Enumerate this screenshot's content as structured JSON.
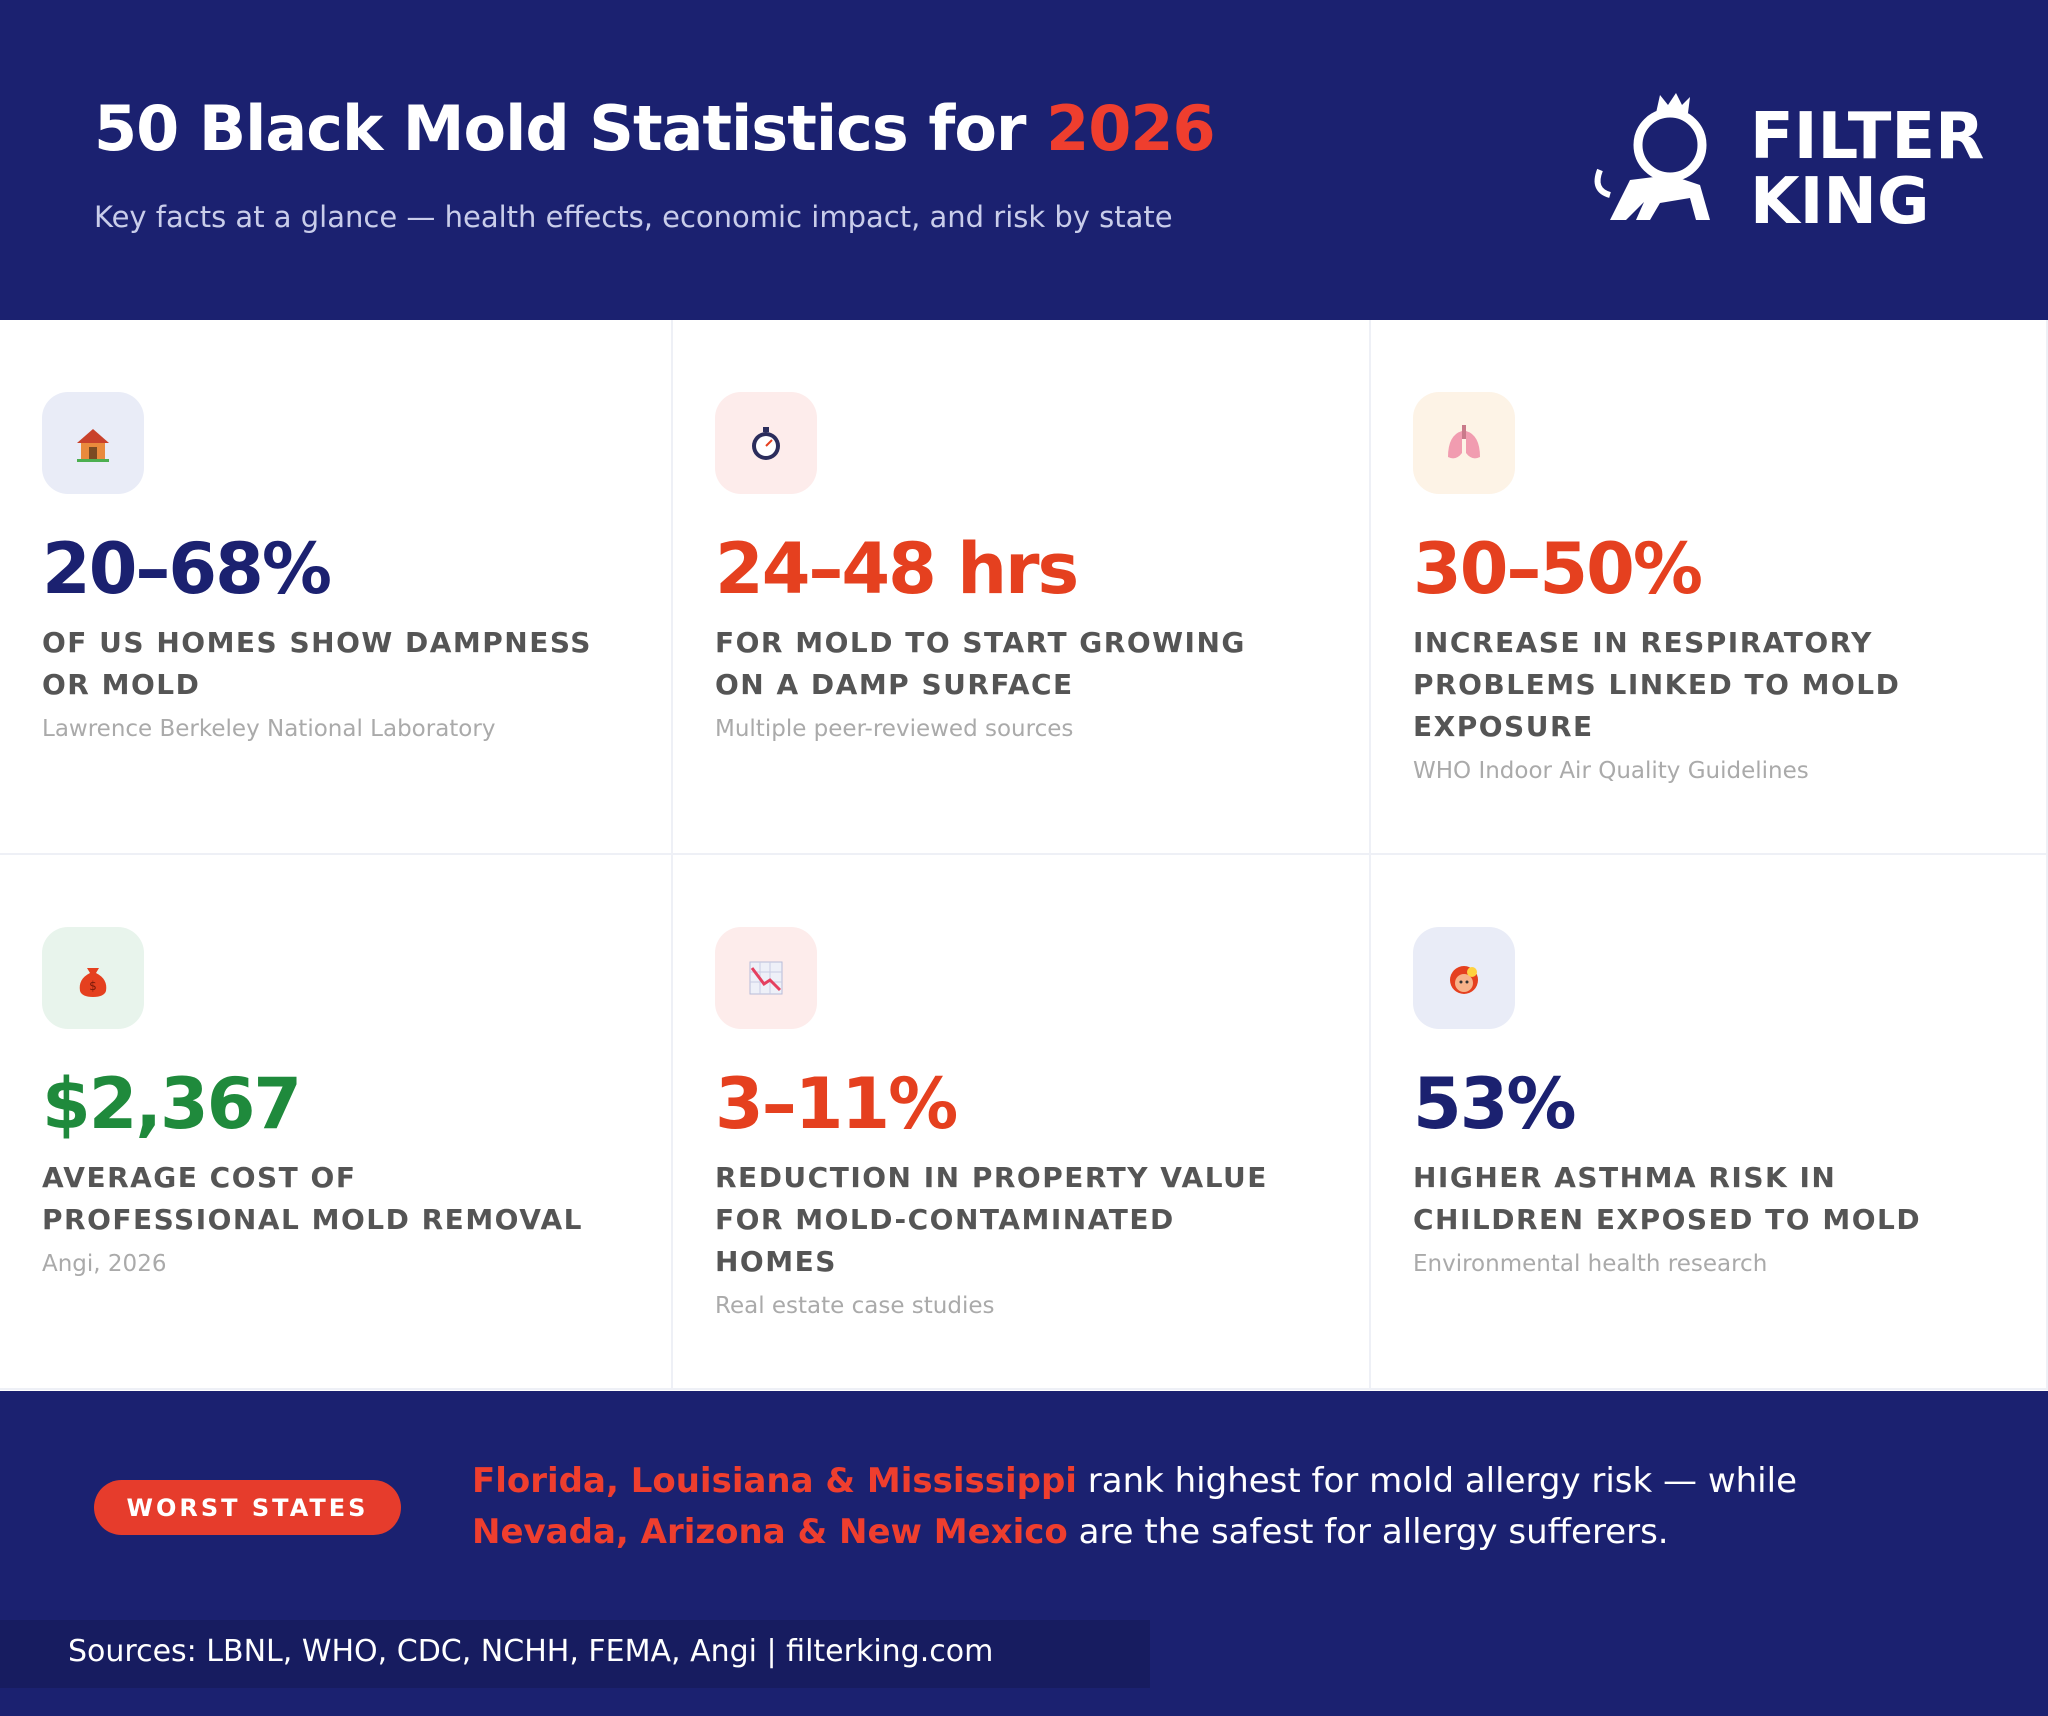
{
  "header": {
    "title": "50 Black Mold Statistics for ",
    "title_highlight": "2026",
    "subtitle": "Key facts at a glance — health effects, economic impact, and risk by state",
    "logo": [
      "FILTER",
      "KING"
    ]
  },
  "cards": [
    {
      "stat": "20–68%",
      "description": "OF US HOMES SHOW DAMPNESS OR MOLD",
      "source": "Lawrence Berkeley National Laboratory"
    },
    {
      "stat": "24–48 hrs",
      "description": "FOR MOLD TO START GROWING ON A DAMP SURFACE",
      "source": "Multiple peer-reviewed sources"
    },
    {
      "stat": "30–50%",
      "description": "INCREASE IN RESPIRATORY PROBLEMS LINKED TO MOLD EXPOSURE",
      "source": "WHO Indoor Air Quality Guidelines"
    },
    {
      "stat": "$2,367",
      "description": "AVERAGE COST OF PROFESSIONAL MOLD REMOVAL",
      "source": "Angi, 2026"
    },
    {
      "stat": "3–11%",
      "description": "REDUCTION IN PROPERTY VALUE FOR MOLD-CONTAMINATED HOMES",
      "source": "Real estate case studies"
    },
    {
      "stat": "53%",
      "description": "HIGHER ASTHMA RISK IN CHILDREN EXPOSED TO MOLD",
      "source": "Environmental health research"
    }
  ],
  "footer": {
    "badge": "WORST STATES",
    "highlight_1": "Florida, Louisiana & Mississippi",
    "text_1": " rank highest for mold allergy risk — while ",
    "highlight_2": "Nevada, Arizona & New Mexico",
    "text_2": " are the safest for allergy sufferers.",
    "sources": "Sources: LBNL, WHO, CDC, NCHH, FEMA, Angi | filterking.com"
  }
}
